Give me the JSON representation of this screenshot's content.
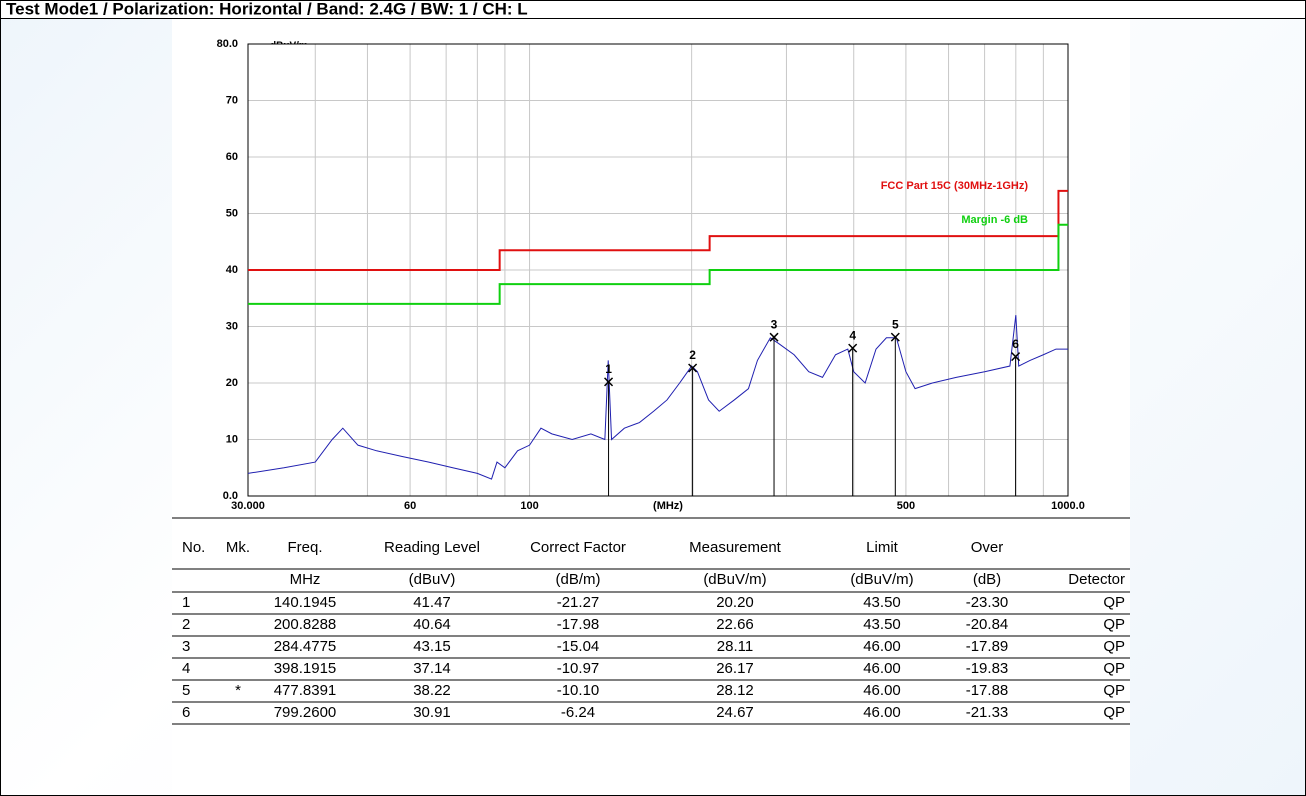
{
  "chart_data": {
    "type": "line",
    "title": "Test Mode1 / Polarization: Horizontal / Band: 2.4G / BW: 1 / CH: L",
    "y_label": "dBuV/m",
    "x_label": "(MHz)",
    "log_x": true,
    "grid": true,
    "xlim": [
      30,
      1000
    ],
    "ylim": [
      0,
      80
    ],
    "xticks": [
      {
        "value": 30,
        "label": "30.000"
      },
      60,
      100,
      500,
      {
        "value": 1000,
        "label": "1000.0"
      }
    ],
    "x_grid": [
      40,
      50,
      70,
      80,
      90,
      200,
      300,
      400,
      600,
      700,
      800,
      900
    ],
    "yticks": [
      {
        "value": 0,
        "label": "0.0"
      },
      10,
      20,
      30,
      40,
      50,
      60,
      70,
      {
        "value": 80,
        "label": "80.0"
      }
    ],
    "series": [
      {
        "name": "FCC Part 15C (30MHz-1GHz)",
        "color": "#e01010",
        "x": [
          30,
          88,
          88,
          216,
          216,
          960,
          960,
          1000
        ],
        "values": [
          40,
          40,
          43.5,
          43.5,
          46,
          46,
          54,
          54
        ]
      },
      {
        "name": "Margin -6 dB",
        "color": "#10d010",
        "x": [
          30,
          88,
          88,
          216,
          216,
          960,
          960,
          1000
        ],
        "values": [
          34,
          34,
          37.5,
          37.5,
          40,
          40,
          48,
          48
        ]
      },
      {
        "name": null,
        "color": "#2020b0",
        "x": [
          30,
          35,
          40,
          43,
          45,
          48,
          52,
          58,
          65,
          72,
          80,
          85,
          87,
          90,
          95,
          100,
          105,
          110,
          120,
          130,
          138,
          140,
          142,
          150,
          160,
          170,
          180,
          190,
          200,
          205,
          215,
          225,
          240,
          255,
          265,
          280,
          290,
          310,
          330,
          350,
          370,
          390,
          400,
          420,
          440,
          460,
          480,
          500,
          520,
          560,
          620,
          700,
          780,
          800,
          810,
          850,
          900,
          950,
          1000
        ],
        "values": [
          4,
          5,
          6,
          10,
          12,
          9,
          8,
          7,
          6,
          5,
          4,
          3,
          6,
          5,
          8,
          9,
          12,
          11,
          10,
          11,
          10,
          24,
          10,
          12,
          13,
          15,
          17,
          20,
          23,
          22,
          17,
          15,
          17,
          19,
          24,
          28,
          27,
          25,
          22,
          21,
          25,
          26,
          22,
          20,
          26,
          28,
          28,
          22,
          19,
          20,
          21,
          22,
          23,
          32,
          23,
          24,
          25,
          26,
          26
        ]
      }
    ],
    "markers": {
      "labels": [
        "1",
        "2",
        "3",
        "4",
        "5",
        "6"
      ],
      "x": [
        140.1945,
        200.8288,
        284.4775,
        398.1915,
        477.8391,
        799.26
      ],
      "values": [
        20.2,
        22.66,
        28.11,
        26.17,
        28.12,
        24.67
      ]
    }
  },
  "table": {
    "header": [
      [
        "No.",
        "Mk.",
        "Freq.",
        "Reading Level",
        "Correct Factor",
        "Measurement",
        "Limit",
        "Over",
        null
      ],
      [
        null,
        null,
        "MHz",
        "(dBuV)",
        "(dB/m)",
        "(dBuV/m)",
        "(dBuV/m)",
        "(dB)",
        "Detector"
      ]
    ],
    "rows": [
      [
        "1",
        null,
        "140.1945",
        "41.47",
        "-21.27",
        "20.20",
        "43.50",
        "-23.30",
        "QP"
      ],
      [
        "2",
        null,
        "200.8288",
        "40.64",
        "-17.98",
        "22.66",
        "43.50",
        "-20.84",
        "QP"
      ],
      [
        "3",
        null,
        "284.4775",
        "43.15",
        "-15.04",
        "28.11",
        "46.00",
        "-17.89",
        "QP"
      ],
      [
        "4",
        null,
        "398.1915",
        "37.14",
        "-10.97",
        "26.17",
        "46.00",
        "-19.83",
        "QP"
      ],
      [
        "5",
        "*",
        "477.8391",
        "38.22",
        "-10.10",
        "28.12",
        "46.00",
        "-17.88",
        "QP"
      ],
      [
        "6",
        null,
        "799.2600",
        "30.91",
        "-6.24",
        "24.67",
        "46.00",
        "-21.33",
        "QP"
      ]
    ]
  }
}
